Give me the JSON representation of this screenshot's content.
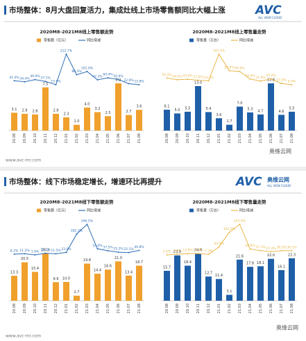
{
  "slides": [
    {
      "title": "市场整体：8月大盘回复活力，集成灶线上市场零售额同比大幅上涨",
      "logo": "AVC",
      "logo_sub": "ALL VIEW CLOUD",
      "footer": "www.avc-mr.com",
      "watermark": "奥维云网"
    },
    {
      "title": "市场整体：线下市场稳定增长，增速环比再提升",
      "logo": "AVC",
      "logo_cn": "奥维云网",
      "logo_sub": "ALL VIEW CLOUD",
      "footer": "www.avc-mr.com",
      "watermark": "奥维云网"
    }
  ],
  "chart_data": [
    {
      "type": "combo",
      "title": "2020M8-2021M8线上零售额走势",
      "categories": [
        "20.08",
        "20.09",
        "20.10",
        "20.11",
        "20.12",
        "21.01",
        "21.02",
        "21.03",
        "21.04",
        "21.05",
        "21.06",
        "21.07",
        "21.08"
      ],
      "series": [
        {
          "name": "零售额（亿元）",
          "type": "bar",
          "color": "#f0a02c",
          "values": [
            3.1,
            2.9,
            2.8,
            7.5,
            2.9,
            2.3,
            1.0,
            4.0,
            3.2,
            2.5,
            8.2,
            2.7,
            3.6
          ],
          "value_labels": [
            "3.1",
            "2.9",
            "2.8",
            "7.5",
            "2.9",
            "2.3",
            "1.0",
            "4.0",
            "3.2",
            "2.5",
            "8.2",
            "2.7",
            "3.6"
          ]
        },
        {
          "name": "同比增减",
          "type": "line",
          "axis": "y2",
          "color": "#2e6db4",
          "values": [
            41.4,
            34.4,
            49.0,
            37.1,
            15.9,
            212.7,
            80.3,
            101.0,
            47.3,
            60.4,
            50.0,
            22.6,
            15.8
          ],
          "value_labels": [
            "41.4%",
            "34.4%",
            "49.0%",
            "37.1%",
            "15.9%",
            "212.7%",
            "80.3%",
            "101.0%",
            "47.3%",
            "60.4%",
            "50.0%",
            "22.6%",
            "15.8%"
          ]
        }
      ]
    },
    {
      "type": "combo",
      "title": "2020M8-2021M8线上零售量走势",
      "categories": [
        "20.08",
        "20.09",
        "20.10",
        "20.11",
        "20.12",
        "21.01",
        "21.02",
        "21.03",
        "21.04",
        "21.05",
        "21.06",
        "21.07",
        "21.08"
      ],
      "series": [
        {
          "name": "零售量（万台）",
          "type": "bar",
          "color": "#1f5fa8",
          "values": [
            6.1,
            5.0,
            5.5,
            13.0,
            5.4,
            3.6,
            1.7,
            7.0,
            5.3,
            4.7,
            13.8,
            4.6,
            5.5
          ],
          "value_labels": [
            "6.1",
            "5.0",
            "5.5",
            "13.0",
            "5.4",
            "3.6",
            "1.7",
            "7.0",
            "5.3",
            "4.7",
            "13.8",
            "4.6",
            "5.5"
          ]
        },
        {
          "name": "同比增减",
          "type": "line",
          "axis": "y2",
          "color": "#e8b84a",
          "values": [
            50.2,
            40.0,
            43.0,
            37.0,
            33.3,
            197.3,
            95.6,
            90.6,
            44.4,
            31.9,
            45.0,
            17.5,
            9.4
          ],
          "value_labels": [
            "50.2%",
            "40.0%",
            "43.0%",
            "37.0%",
            "33.3%",
            "197.3%",
            "95.6%",
            "90.6%",
            "44.4%",
            "31.9%",
            "45.0%",
            "17.5%",
            "9.4%"
          ]
        }
      ]
    },
    {
      "type": "combo",
      "title": "2020M8-2021M8线下零售额走势",
      "categories": [
        "20.08",
        "20.09",
        "20.10",
        "20.11",
        "20.12",
        "21.01",
        "21.02",
        "21.03",
        "21.04",
        "21.05",
        "21.06",
        "21.07",
        "21.08"
      ],
      "series": [
        {
          "name": "零售额（亿元）",
          "type": "bar",
          "color": "#f0a02c",
          "values": [
            13.3,
            20.5,
            15.4,
            25.2,
            9.9,
            10.0,
            2.7,
            19.8,
            14.4,
            16.6,
            21.0,
            13.4,
            18.7
          ],
          "value_labels": [
            "13.3",
            "20.5",
            "15.4",
            "25.2",
            "9.9",
            "10.0",
            "2.7",
            "19.8",
            "14.4",
            "16.6",
            "21.0",
            "13.4",
            "18.7"
          ]
        },
        {
          "name": "同比增减",
          "type": "line",
          "axis": "y2",
          "color": "#2e6db4",
          "values": [
            8.2,
            11.2,
            1.6,
            16.1,
            11.5,
            23.0,
            182.3,
            266.5,
            54.0,
            37.5,
            25.2,
            22.1,
            40.8
          ],
          "value_labels": [
            "8.2%",
            "11.2%",
            "1.6%",
            "16.1%",
            "11.5%",
            "23.0%",
            "182.3%",
            "266.5%",
            "54.0%",
            "37.5%",
            "25.2%",
            "22.1%",
            "40.8%"
          ]
        }
      ]
    },
    {
      "type": "combo",
      "title": "2020M8-2021M8线下零售量走势",
      "categories": [
        "20.08",
        "20.09",
        "20.10",
        "20.11",
        "20.12",
        "21.01",
        "21.02",
        "21.03",
        "21.04",
        "21.05",
        "21.06",
        "21.07",
        "21.08"
      ],
      "series": [
        {
          "name": "零售量（万台）",
          "type": "bar",
          "color": "#1f5fa8",
          "values": [
            15.7,
            23.8,
            18.4,
            24.8,
            12.7,
            11.4,
            3.1,
            21.6,
            17.8,
            18.1,
            22.0,
            16.1,
            22.3
          ],
          "value_labels": [
            "15.7",
            "23.8",
            "18.4",
            "24.8",
            "12.7",
            "11.4",
            "3.1",
            "21.6",
            "17.8",
            "18.1",
            "22.0",
            "16.1",
            "22.3"
          ]
        },
        {
          "name": "同比增减",
          "type": "line",
          "axis": "y2",
          "color": "#e8b84a",
          "values": [
            2.6,
            8.0,
            12.8,
            13.4,
            7.2,
            64.9,
            181.3,
            243.9,
            48.9,
            37.1,
            27.4,
            36.2,
            36.1
          ],
          "value_labels": [
            "2.6%",
            "8.0%",
            "12.8%",
            "13.4%",
            "7.2%",
            "64.9%",
            "181.3%",
            "243.9%",
            "48.9%",
            "37.1%",
            "27.4%",
            "36.2%",
            "36.1%"
          ]
        }
      ]
    }
  ]
}
